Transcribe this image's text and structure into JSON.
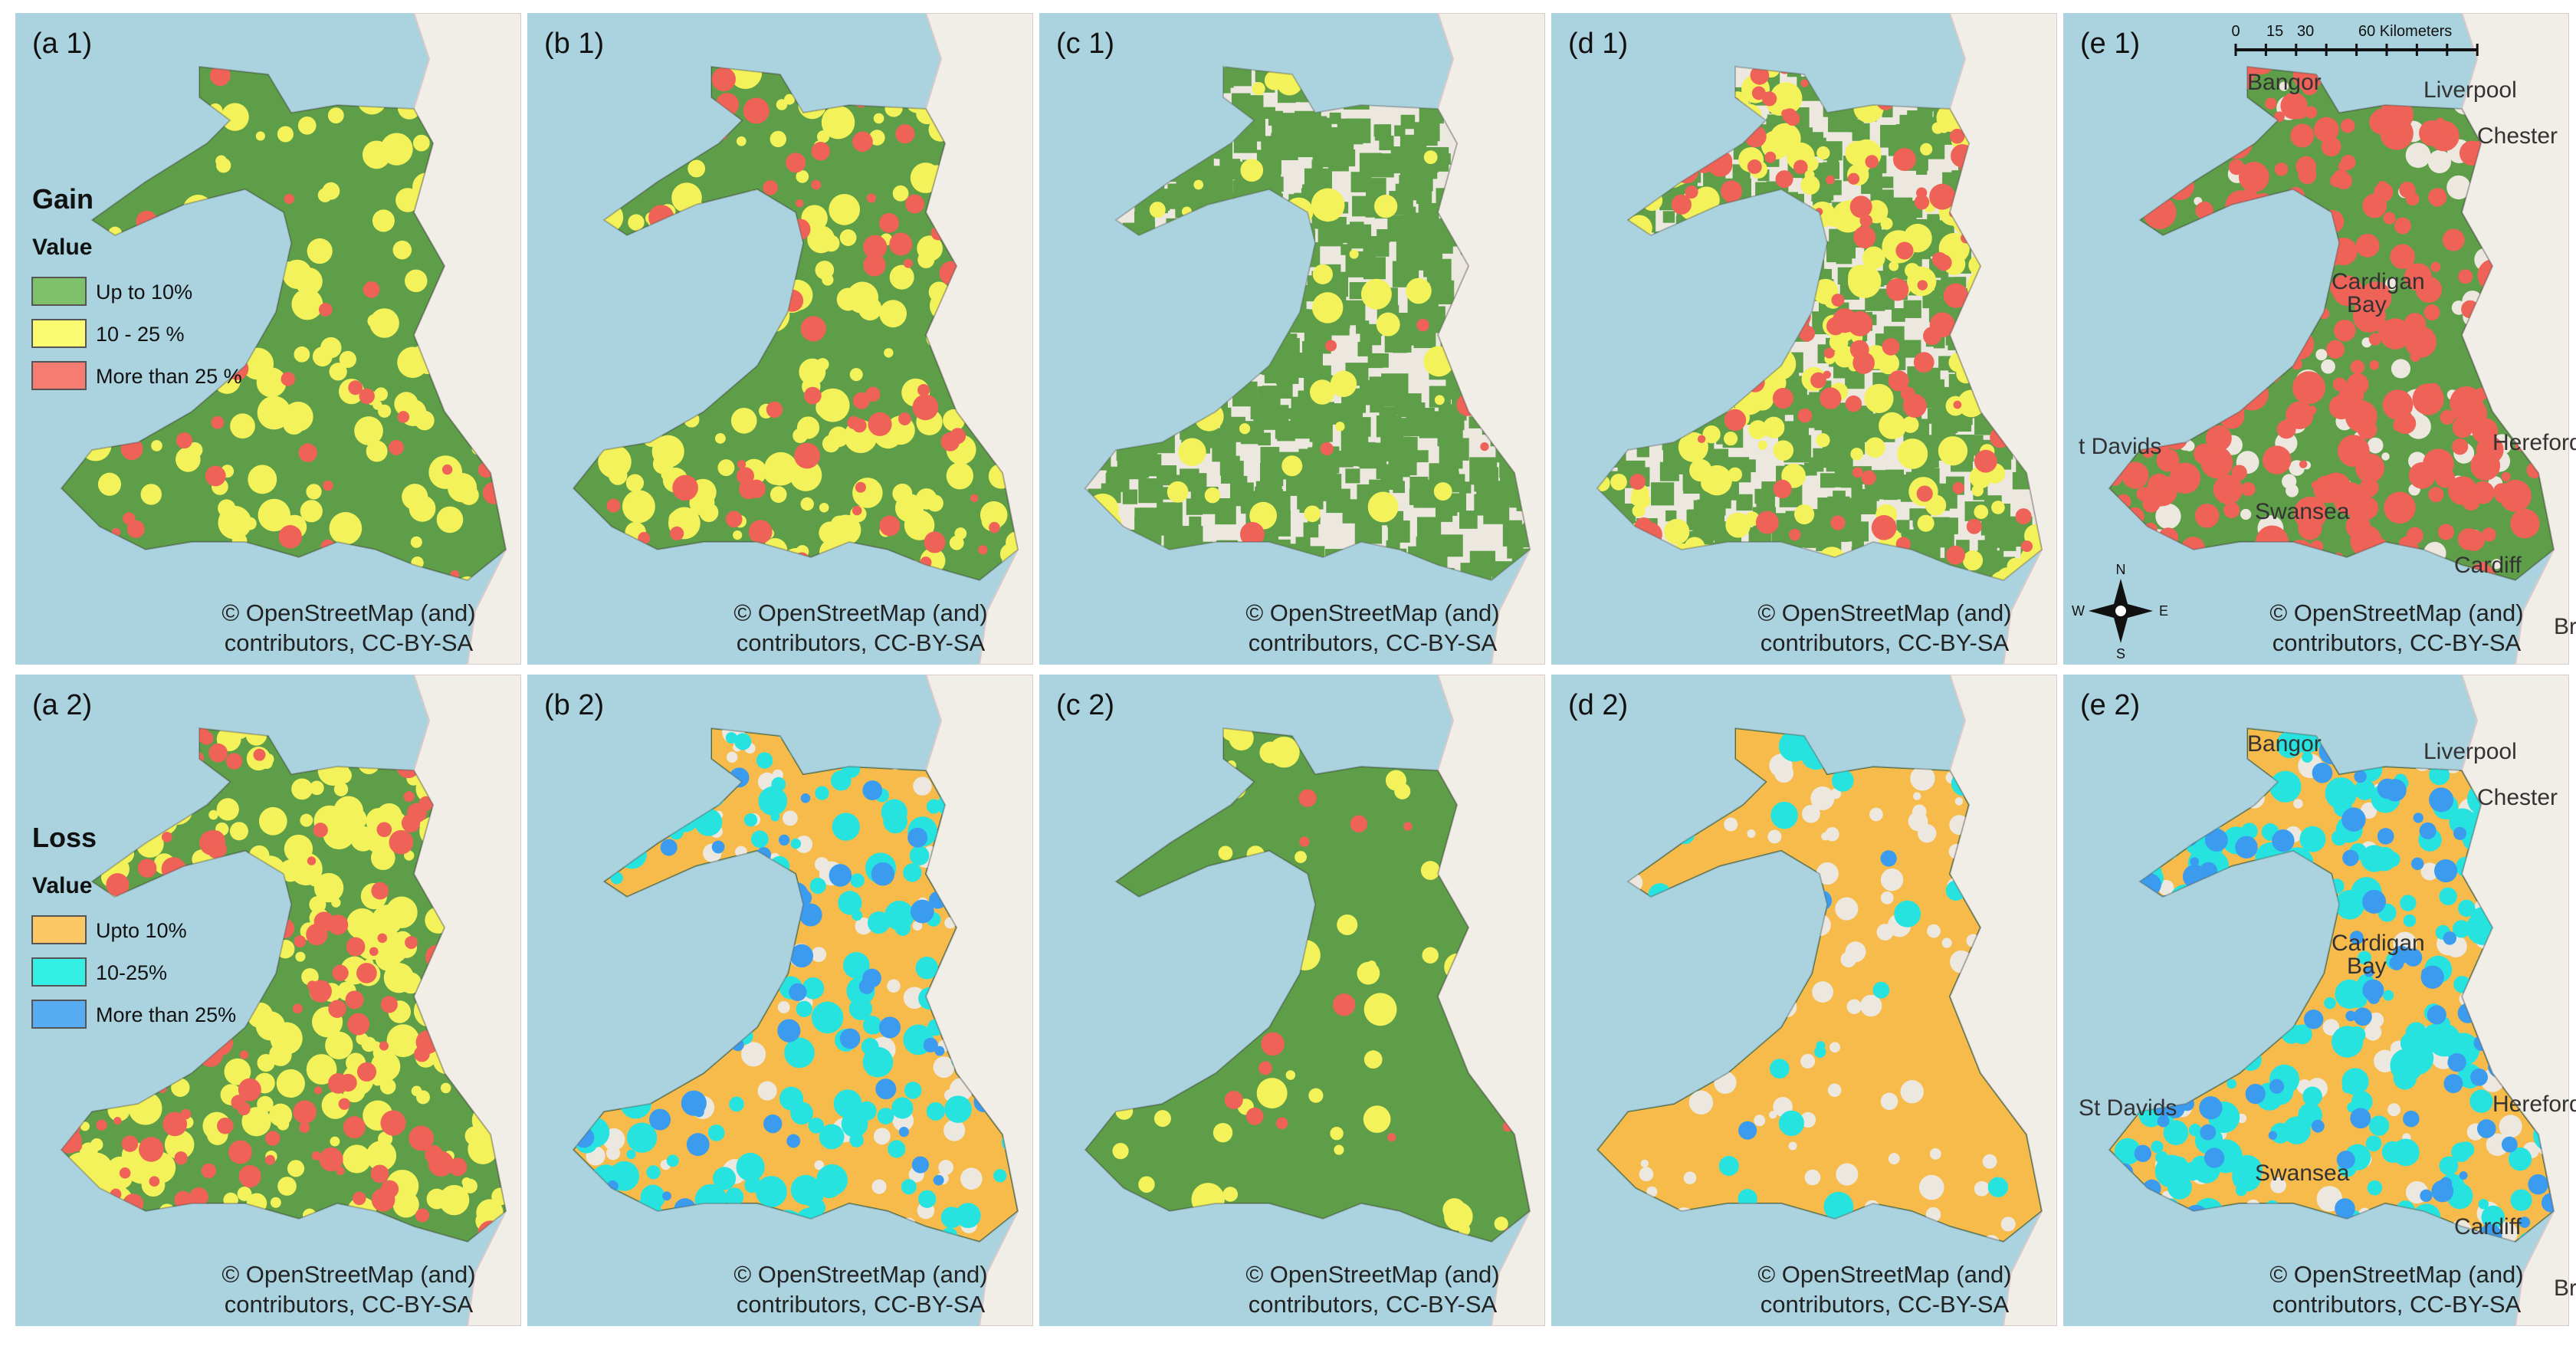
{
  "panels": [
    {
      "label": "(a 1)",
      "attribution": [
        "© OpenStreetMap (and)",
        "contributors, CC-BY-SA"
      ]
    },
    {
      "label": "(b 1)",
      "attribution": [
        "© OpenStreetMap (and)",
        "contributors, CC-BY-SA"
      ]
    },
    {
      "label": "(c 1)",
      "attribution": [
        "© OpenStreetMap (and)",
        "contributors, CC-BY-SA"
      ]
    },
    {
      "label": "(d 1)",
      "attribution": [
        "© OpenStreetMap (and)",
        "contributors, CC-BY-SA"
      ]
    },
    {
      "label": "(e 1)",
      "attribution": [
        "© OpenStreetMap (and)",
        "contributors, CC-BY-SA"
      ],
      "places": [
        "Liverpool",
        "Bangor",
        "Chester",
        "Cardigan",
        "Bay",
        "t Davids",
        "Hereford",
        "Swansea",
        "Cardiff",
        "Bri"
      ]
    },
    {
      "label": "(a 2)",
      "attribution": [
        "© OpenStreetMap (and)",
        "contributors, CC-BY-SA"
      ]
    },
    {
      "label": "(b 2)",
      "attribution": [
        "© OpenStreetMap (and)",
        "contributors, CC-BY-SA"
      ]
    },
    {
      "label": "(c 2)",
      "attribution": [
        "© OpenStreetMap (and)",
        "contributors, CC-BY-SA"
      ]
    },
    {
      "label": "(d 2)",
      "attribution": [
        "© OpenStreetMap (and)",
        "contributors, CC-BY-SA"
      ]
    },
    {
      "label": "(e 2)",
      "attribution": [
        "© OpenStreetMap (and)",
        "contributors, CC-BY-SA"
      ],
      "places": [
        "Liverpool",
        "Bangor",
        "Chester",
        "Cardigan",
        "Bay",
        "St Davids",
        "Hereford",
        "Swansea",
        "Cardiff",
        "Bri"
      ]
    }
  ],
  "legends": {
    "gain": {
      "title": "Gain",
      "subtitle": "Value",
      "items": [
        "Up to 10%",
        "10 - 25 %",
        "More than 25 %"
      ]
    },
    "loss": {
      "title": "Loss",
      "subtitle": "Value",
      "items": [
        "Upto 10%",
        "10-25%",
        "More than 25%"
      ]
    }
  },
  "scale_bar": {
    "ticks": [
      "0",
      "15",
      "30",
      "60 Kilometers"
    ]
  },
  "compass": {
    "n": "N",
    "s": "S",
    "e": "E",
    "w": "W"
  }
}
